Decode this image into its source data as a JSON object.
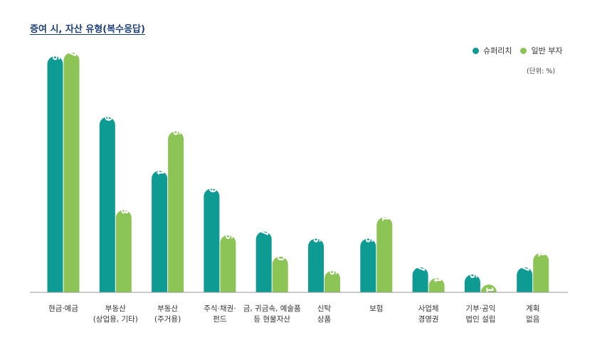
{
  "chart_data": {
    "type": "bar",
    "title": "증여 시, 자산 유형(복수응답)",
    "unit": "(단위: %)",
    "categories": [
      [
        "현금·예금"
      ],
      [
        "부동산",
        "(상업용, 기타)"
      ],
      [
        "부동산",
        "(주거용)"
      ],
      [
        "주식·채권·",
        "펀드"
      ],
      [
        "금, 귀금속, 예술품",
        "등 현물자산"
      ],
      [
        "신탁",
        "상품"
      ],
      [
        "보험"
      ],
      [
        "사업체",
        "경영권"
      ],
      [
        "기부·공익",
        "법인 설립"
      ],
      [
        "계획",
        "없음"
      ]
    ],
    "series": [
      {
        "name": "슈퍼리치",
        "color": "#0e9b94",
        "values": [
          66,
          49,
          34,
          29,
          17,
          15,
          15,
          7,
          5,
          7
        ]
      },
      {
        "name": "일반 부자",
        "color": "#8cc456",
        "values": [
          67,
          23,
          45,
          16,
          10,
          6,
          21,
          4,
          1,
          11
        ]
      }
    ],
    "ylim": [
      0,
      67
    ],
    "legend": "top-right",
    "grid": false
  }
}
